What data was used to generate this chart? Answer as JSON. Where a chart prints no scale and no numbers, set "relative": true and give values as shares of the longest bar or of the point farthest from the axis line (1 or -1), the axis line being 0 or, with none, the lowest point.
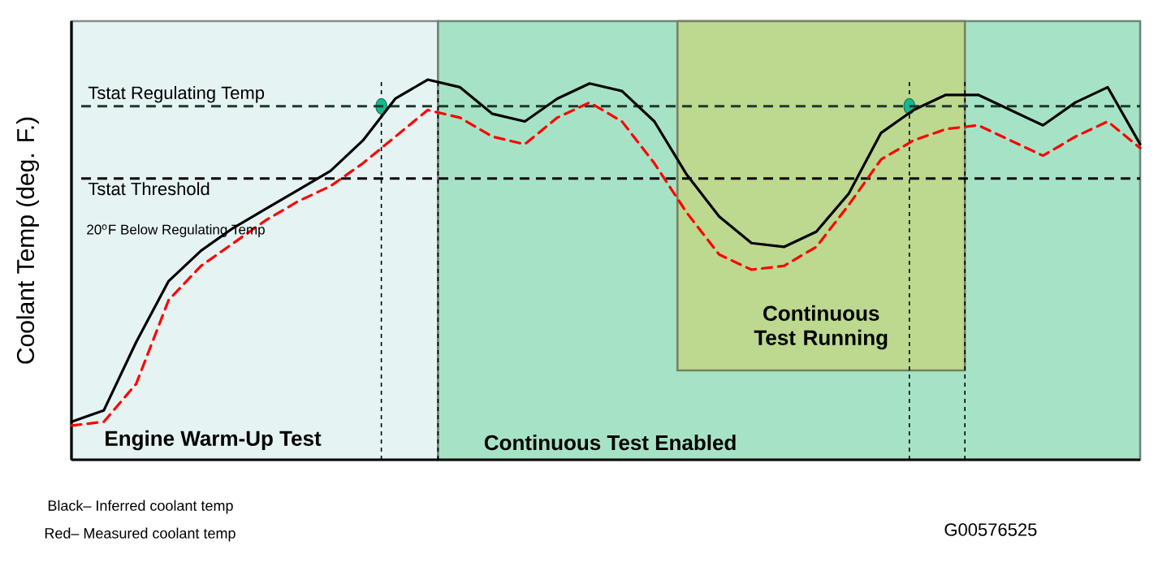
{
  "chart_data": {
    "type": "line",
    "relative": true,
    "ylabel": "Coolant Temp (deg. F.)",
    "tick_labels": false,
    "categories": [
      null,
      null,
      null,
      null,
      null,
      null,
      null,
      null,
      null,
      null,
      null,
      null,
      null,
      null,
      null,
      null,
      null,
      null,
      null,
      null,
      null,
      null,
      null,
      null,
      null,
      null,
      null,
      null,
      null,
      null,
      null,
      null,
      null,
      null
    ],
    "series": [
      {
        "color": "#000000",
        "line_style": "solid",
        "values": [
          0.1,
          0.13,
          0.31,
          0.47,
          0.55,
          0.61,
          0.66,
          0.71,
          0.76,
          0.84,
          0.95,
          1.0,
          0.98,
          0.91,
          0.89,
          0.95,
          0.99,
          0.97,
          0.89,
          0.75,
          0.64,
          0.57,
          0.56,
          0.6,
          0.7,
          0.86,
          0.92,
          0.96,
          0.96,
          0.92,
          0.88,
          0.94,
          0.98,
          0.83
        ]
      },
      {
        "color": "#ff0000",
        "line_style": "dashed",
        "values": [
          0.09,
          0.1,
          0.2,
          0.42,
          0.51,
          0.57,
          0.63,
          0.68,
          0.72,
          0.78,
          0.85,
          0.92,
          0.9,
          0.85,
          0.83,
          0.9,
          0.94,
          0.89,
          0.78,
          0.65,
          0.54,
          0.5,
          0.51,
          0.56,
          0.67,
          0.79,
          0.84,
          0.87,
          0.88,
          0.84,
          0.8,
          0.85,
          0.89,
          0.82
        ]
      }
    ],
    "ref_lines": [
      {
        "axis": "y",
        "value": 0.93,
        "label": "Tstat Regulating Temp",
        "color": "#1c3a2c",
        "line_style": "dashed"
      },
      {
        "axis": "y",
        "value": 0.74,
        "label": "Tstat Threshold",
        "color": "#000000",
        "line_style": "dashed"
      }
    ],
    "annotations": [
      "20$^{o}$F Below Regulating Temp",
      "Black– Inferred coolant temp",
      "Red– Measured coolant temp",
      "G00576525",
      "Engine Warm-Up Test",
      "Continuous Test Enabled",
      "Continuous Test Running"
    ]
  }
}
